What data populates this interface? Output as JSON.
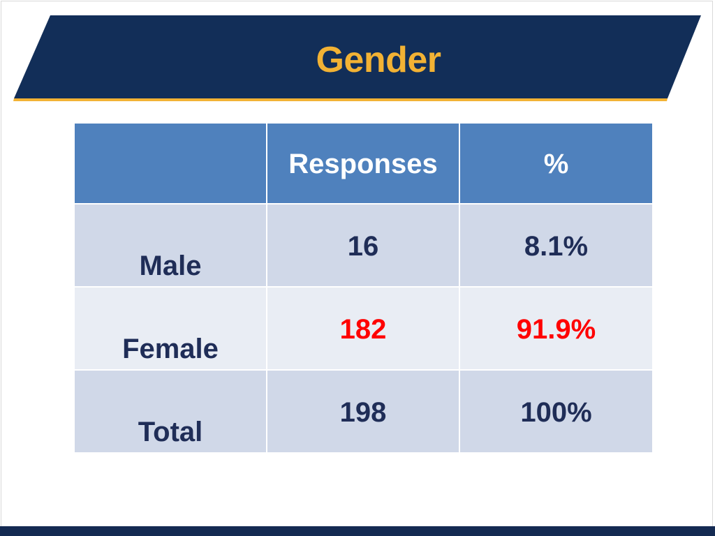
{
  "slide": {
    "title": "Gender"
  },
  "colors": {
    "banner": "#122e58",
    "banner_underline": "#f2b234",
    "title_text": "#f2b234",
    "header_fill": "#4f81bd",
    "row_fill_dark": "#d0d8e8",
    "row_fill_light": "#e9edf4",
    "body_text": "#1f2d57",
    "highlight_text": "#ff0000",
    "bottom_bar": "#142a52"
  },
  "table": {
    "headers": [
      "",
      "Responses",
      "%"
    ],
    "rows": [
      {
        "label": "Male",
        "responses": "16",
        "percent": "8.1%"
      },
      {
        "label": "Female",
        "responses": "182",
        "percent": "91.9%"
      },
      {
        "label": "Total",
        "responses": "198",
        "percent": "100%"
      }
    ]
  }
}
